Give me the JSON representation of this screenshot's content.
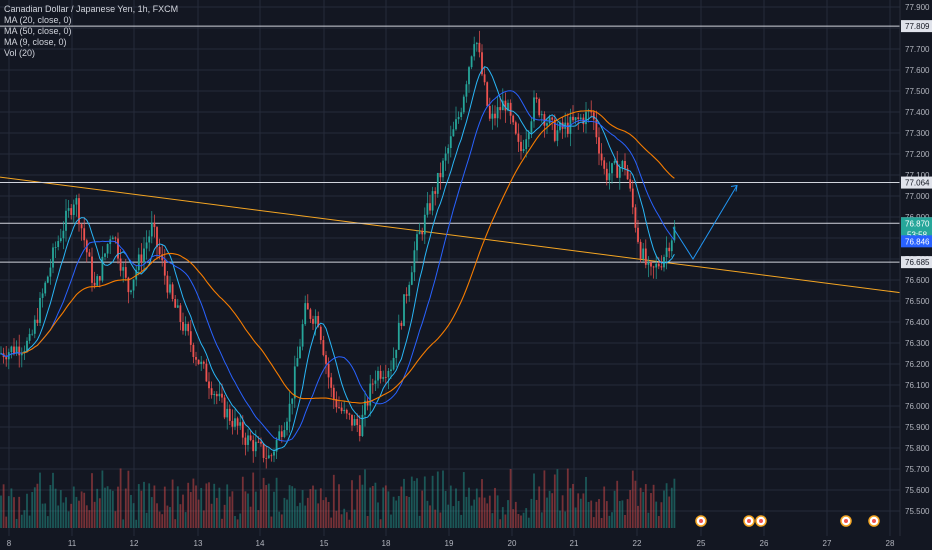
{
  "legend": {
    "title": "Canadian Dollar / Japanese Yen, 1h, FXCM",
    "ma20": "MA (20, close, 0)",
    "ma50": "MA (50, close, 0)",
    "ma9": "MA (9, close, 0)",
    "vol": "Vol (20)"
  },
  "colors": {
    "background": "#131722",
    "grid": "#262b3a",
    "bull": "#26a69a",
    "bear": "#ef5350",
    "ma20": "#2962ff",
    "ma50": "#f57c00",
    "ma9": "#29b6f6",
    "trendline": "#f5a623",
    "projection": "#2196f3",
    "hline": "#d1d4dc"
  },
  "chart_data": {
    "type": "candlestick",
    "symbol": "CADJPY",
    "timeframe": "1h",
    "source": "FXCM",
    "y_ticks": [
      "77.900",
      "77.800",
      "77.700",
      "77.600",
      "77.500",
      "77.400",
      "77.300",
      "77.200",
      "77.100",
      "77.000",
      "76.900",
      "76.800",
      "76.700",
      "76.600",
      "76.500",
      "76.400",
      "76.300",
      "76.200",
      "76.100",
      "76.000",
      "75.900",
      "75.800",
      "75.700",
      "75.600",
      "75.500"
    ],
    "ylim": [
      75.46,
      77.94
    ],
    "x_ticks": [
      "8",
      "11",
      "12",
      "13",
      "14",
      "15",
      "18",
      "19",
      "20",
      "21",
      "22",
      "25",
      "26",
      "27",
      "28"
    ],
    "horizontal_levels": [
      "77.809",
      "77.064",
      "76.870",
      "76.685"
    ],
    "price_labels": {
      "current_price": "76.870",
      "countdown": "53:58",
      "ma_value": "76.846"
    },
    "trendline": {
      "from": [
        "8",
        77.09
      ],
      "to": [
        "28",
        76.54
      ]
    },
    "projection_path": [
      [
        "22",
        76.85
      ],
      [
        "22",
        76.7
      ],
      [
        "25",
        77.05
      ]
    ],
    "key_points": [
      {
        "label": "start",
        "x": "8",
        "y": 76.2
      },
      {
        "label": "high",
        "x": "11",
        "y": 77.0
      },
      {
        "label": "low",
        "x": "13",
        "y": 75.75
      },
      {
        "label": "high",
        "x": "15",
        "y": 76.5
      },
      {
        "label": "low",
        "x": "15",
        "y": 75.85
      },
      {
        "label": "peak",
        "x": "19",
        "y": 77.78
      },
      {
        "label": "high",
        "x": "21",
        "y": 77.45
      },
      {
        "label": "low",
        "x": "22",
        "y": 76.58
      },
      {
        "label": "end",
        "x": "22",
        "y": 76.87
      }
    ]
  }
}
